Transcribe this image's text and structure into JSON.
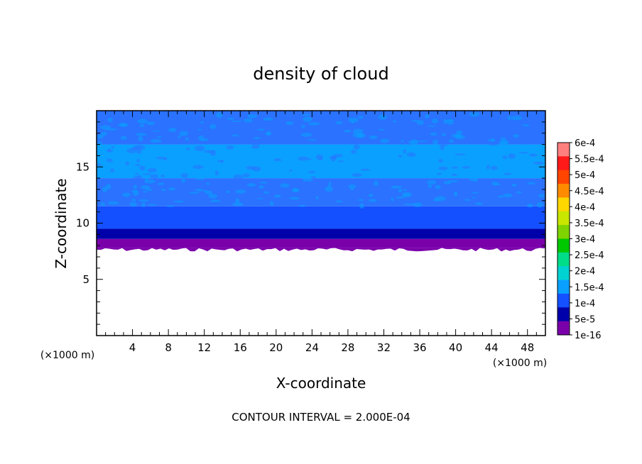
{
  "chart_data": {
    "type": "heatmap",
    "title": "density of cloud",
    "xlabel": "X-coordinate",
    "ylabel": "Z-coordinate",
    "x_unit": "(×1000 m)",
    "z_unit": "(×1000 m)",
    "xlim": [
      0,
      50
    ],
    "ylim": [
      0,
      20
    ],
    "x_ticks": [
      4,
      8,
      12,
      16,
      20,
      24,
      28,
      32,
      36,
      40,
      44,
      48
    ],
    "y_ticks": [
      5,
      10,
      15
    ],
    "footer": "CONTOUR INTERVAL = 2.000E-04",
    "legend_placement": "right",
    "colorbar": {
      "labels": [
        "6e-4",
        "5.5e-4",
        "5e-4",
        "4.5e-4",
        "4e-4",
        "3.5e-4",
        "3e-4",
        "2.5e-4",
        "2e-4",
        "1.5e-4",
        "1e-4",
        "5e-5",
        "1e-16"
      ],
      "colors": [
        "#ff7f7f",
        "#ff1a1a",
        "#ff4500",
        "#ff8c00",
        "#ffd700",
        "#c8e600",
        "#7fd400",
        "#00c800",
        "#00dd88",
        "#00d2d2",
        "#0aa0ff",
        "#1450ff",
        "#0000aa",
        "#7a00aa"
      ]
    },
    "layers": [
      {
        "z_range": [
          0,
          7.8
        ],
        "fill": "none"
      },
      {
        "z_range": [
          7.8,
          8.6
        ],
        "fill": "#7a00aa"
      },
      {
        "z_range": [
          8.6,
          9.5
        ],
        "fill": "#0000aa"
      },
      {
        "z_range": [
          9.5,
          11.5
        ],
        "fill": "#1450ff"
      },
      {
        "z_range": [
          11.5,
          14.0
        ],
        "fill": "#2a72ff"
      },
      {
        "z_range": [
          14.0,
          17.0
        ],
        "fill": "#0aa0ff"
      },
      {
        "z_range": [
          17.0,
          20.0
        ],
        "fill": "#2a72ff"
      }
    ]
  }
}
